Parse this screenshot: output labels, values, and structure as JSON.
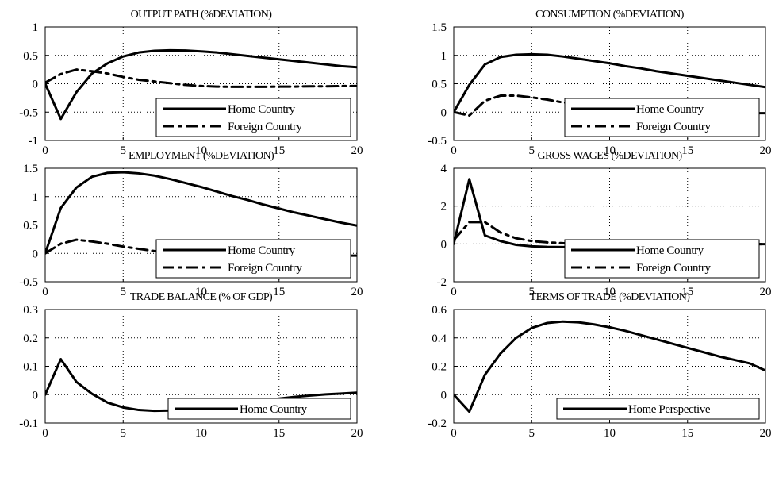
{
  "chart_data": [
    {
      "type": "line",
      "title": "OUTPUT PATH (%DEVIATION)",
      "xlabel": "",
      "ylabel": "",
      "xlim": [
        0,
        20
      ],
      "ylim": [
        -1,
        1
      ],
      "xticks": [
        0,
        5,
        10,
        15,
        20
      ],
      "xtick_labels": [
        "0",
        "5",
        "10",
        "15",
        "20"
      ],
      "yticks": [
        -1,
        -0.5,
        0,
        0.5,
        1
      ],
      "ytick_labels": [
        "-1",
        "-0.5",
        "0",
        "0.5",
        "1"
      ],
      "grid": true,
      "legend_position": "bottom-right",
      "x": [
        0,
        1,
        2,
        3,
        4,
        5,
        6,
        7,
        8,
        9,
        10,
        11,
        12,
        13,
        14,
        15,
        16,
        17,
        18,
        19,
        20
      ],
      "series": [
        {
          "name": "Home Country",
          "style": "solid",
          "values": [
            0,
            -0.62,
            -0.15,
            0.18,
            0.36,
            0.48,
            0.55,
            0.58,
            0.59,
            0.585,
            0.57,
            0.55,
            0.52,
            0.49,
            0.46,
            0.43,
            0.4,
            0.37,
            0.34,
            0.31,
            0.29
          ]
        },
        {
          "name": "Foreign Country",
          "style": "dashdot",
          "values": [
            0.02,
            0.17,
            0.25,
            0.22,
            0.18,
            0.12,
            0.07,
            0.04,
            0.01,
            -0.02,
            -0.04,
            -0.05,
            -0.055,
            -0.055,
            -0.055,
            -0.05,
            -0.05,
            -0.045,
            -0.045,
            -0.04,
            -0.04
          ]
        }
      ]
    },
    {
      "type": "line",
      "title": "CONSUMPTION (%DEVIATION)",
      "xlabel": "",
      "ylabel": "",
      "xlim": [
        0,
        20
      ],
      "ylim": [
        -0.5,
        1.5
      ],
      "xticks": [
        0,
        5,
        10,
        15,
        20
      ],
      "xtick_labels": [
        "0",
        "5",
        "10",
        "15",
        "20"
      ],
      "yticks": [
        -0.5,
        0,
        0.5,
        1,
        1.5
      ],
      "ytick_labels": [
        "-0.5",
        "0",
        "0.5",
        "1",
        "1.5"
      ],
      "grid": true,
      "legend_position": "bottom-right",
      "x": [
        0,
        1,
        2,
        3,
        4,
        5,
        6,
        7,
        8,
        9,
        10,
        11,
        12,
        13,
        14,
        15,
        16,
        17,
        18,
        19,
        20
      ],
      "series": [
        {
          "name": "Home Country",
          "style": "solid",
          "values": [
            0,
            0.48,
            0.84,
            0.97,
            1.01,
            1.02,
            1.01,
            0.98,
            0.94,
            0.9,
            0.86,
            0.81,
            0.77,
            0.72,
            0.68,
            0.64,
            0.6,
            0.56,
            0.52,
            0.48,
            0.44
          ]
        },
        {
          "name": "Foreign Country",
          "style": "dashdot",
          "values": [
            0.0,
            -0.06,
            0.2,
            0.29,
            0.29,
            0.26,
            0.22,
            0.17,
            0.13,
            0.09,
            0.06,
            0.03,
            0.01,
            0.0,
            -0.01,
            -0.02,
            -0.02,
            -0.02,
            -0.02,
            -0.02,
            -0.02
          ]
        }
      ]
    },
    {
      "type": "line",
      "title": "EMPLOYMENT (%DEVIATION)",
      "xlabel": "",
      "ylabel": "",
      "xlim": [
        0,
        20
      ],
      "ylim": [
        -0.5,
        1.5
      ],
      "xticks": [
        0,
        5,
        10,
        15,
        20
      ],
      "xtick_labels": [
        "0",
        "5",
        "10",
        "15",
        "20"
      ],
      "yticks": [
        -0.5,
        0,
        0.5,
        1,
        1.5
      ],
      "ytick_labels": [
        "-0.5",
        "0",
        "0.5",
        "1",
        "1.5"
      ],
      "grid": true,
      "legend_position": "bottom-right",
      "x": [
        0,
        1,
        2,
        3,
        4,
        5,
        6,
        7,
        8,
        9,
        10,
        11,
        12,
        13,
        14,
        15,
        16,
        17,
        18,
        19,
        20
      ],
      "series": [
        {
          "name": "Home Country",
          "style": "solid",
          "values": [
            0,
            0.8,
            1.16,
            1.35,
            1.42,
            1.43,
            1.41,
            1.37,
            1.31,
            1.24,
            1.17,
            1.09,
            1.01,
            0.94,
            0.86,
            0.79,
            0.72,
            0.66,
            0.6,
            0.54,
            0.49
          ]
        },
        {
          "name": "Foreign Country",
          "style": "dashdot",
          "values": [
            0.0,
            0.17,
            0.24,
            0.21,
            0.17,
            0.12,
            0.08,
            0.04,
            0.01,
            -0.01,
            -0.02,
            -0.03,
            -0.03,
            -0.04,
            -0.04,
            -0.04,
            -0.04,
            -0.04,
            -0.04,
            -0.04,
            -0.04
          ]
        }
      ]
    },
    {
      "type": "line",
      "title": "GROSS WAGES (%DEVIATION)",
      "xlabel": "",
      "ylabel": "",
      "xlim": [
        0,
        20
      ],
      "ylim": [
        -2,
        4
      ],
      "xticks": [
        0,
        5,
        10,
        15,
        20
      ],
      "xtick_labels": [
        "0",
        "5",
        "10",
        "15",
        "20"
      ],
      "yticks": [
        -2,
        0,
        2,
        4
      ],
      "ytick_labels": [
        "-2",
        "0",
        "2",
        "4"
      ],
      "grid": true,
      "legend_position": "bottom-right",
      "x": [
        0,
        1,
        2,
        3,
        4,
        5,
        6,
        7,
        8,
        9,
        10,
        11,
        12,
        13,
        14,
        15,
        16,
        17,
        18,
        19,
        20
      ],
      "series": [
        {
          "name": "Home Country",
          "style": "solid",
          "values": [
            0,
            3.42,
            0.45,
            0.15,
            -0.05,
            -0.13,
            -0.16,
            -0.17,
            -0.16,
            -0.14,
            -0.12,
            -0.1,
            -0.08,
            -0.06,
            -0.05,
            -0.04,
            -0.03,
            -0.02,
            -0.02,
            -0.01,
            -0.01
          ]
        },
        {
          "name": "Foreign Country",
          "style": "dashdot",
          "values": [
            0.2,
            1.15,
            1.15,
            0.6,
            0.3,
            0.15,
            0.08,
            0.04,
            0.02,
            0.01,
            0.0,
            -0.01,
            -0.01,
            -0.01,
            -0.01,
            -0.01,
            -0.01,
            -0.01,
            -0.01,
            -0.01,
            -0.01
          ]
        }
      ]
    },
    {
      "type": "line",
      "title": "TRADE BALANCE (% OF GDP)",
      "xlabel": "",
      "ylabel": "",
      "xlim": [
        0,
        20
      ],
      "ylim": [
        -0.1,
        0.3
      ],
      "xticks": [
        0,
        5,
        10,
        15,
        20
      ],
      "xtick_labels": [
        "0",
        "5",
        "10",
        "15",
        "20"
      ],
      "yticks": [
        -0.1,
        0,
        0.1,
        0.2,
        0.3
      ],
      "ytick_labels": [
        "-0.1",
        "0",
        "0.1",
        "0.2",
        "0.3"
      ],
      "grid": true,
      "legend_position": "bottom-right",
      "x": [
        0,
        1,
        2,
        3,
        4,
        5,
        6,
        7,
        8,
        9,
        10,
        11,
        12,
        13,
        14,
        15,
        16,
        17,
        18,
        19,
        20
      ],
      "series": [
        {
          "name": "Home Country",
          "style": "solid",
          "values": [
            0,
            0.125,
            0.045,
            0.003,
            -0.028,
            -0.045,
            -0.054,
            -0.057,
            -0.056,
            -0.052,
            -0.046,
            -0.04,
            -0.033,
            -0.026,
            -0.02,
            -0.014,
            -0.008,
            -0.003,
            0.001,
            0.004,
            0.007
          ]
        }
      ]
    },
    {
      "type": "line",
      "title": "TERMS OF TRADE (%DEVIATION)",
      "xlabel": "",
      "ylabel": "",
      "xlim": [
        0,
        20
      ],
      "ylim": [
        -0.2,
        0.6
      ],
      "xticks": [
        0,
        5,
        10,
        15,
        20
      ],
      "xtick_labels": [
        "0",
        "5",
        "10",
        "15",
        "20"
      ],
      "yticks": [
        -0.2,
        0,
        0.2,
        0.4,
        0.6
      ],
      "ytick_labels": [
        "-0.2",
        "0",
        "0.2",
        "0.4",
        "0.6"
      ],
      "grid": true,
      "legend_position": "bottom-right",
      "x": [
        0,
        1,
        2,
        3,
        4,
        5,
        6,
        7,
        8,
        9,
        10,
        11,
        12,
        13,
        14,
        15,
        16,
        17,
        18,
        19,
        20
      ],
      "series": [
        {
          "name": "Home Perspective",
          "style": "solid",
          "values": [
            0,
            -0.12,
            0.14,
            0.29,
            0.4,
            0.47,
            0.505,
            0.515,
            0.51,
            0.495,
            0.475,
            0.45,
            0.42,
            0.39,
            0.36,
            0.33,
            0.3,
            0.27,
            0.245,
            0.22,
            0.17
          ]
        }
      ]
    }
  ]
}
